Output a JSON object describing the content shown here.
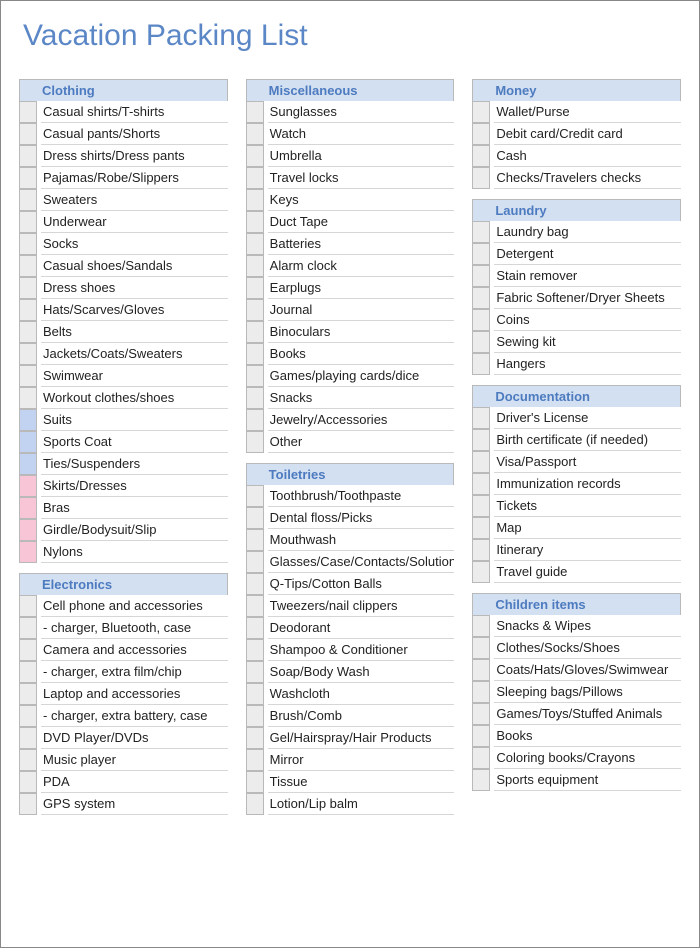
{
  "title": "Vacation Packing List",
  "colors": {
    "title_color": "#5b87c7",
    "header_bg": "#d3e0f1",
    "header_text": "#4d7bc0",
    "box_gray": "#ececec",
    "box_blue": "#c2d3f2",
    "box_pink": "#f7c5d6",
    "border": "#b9b9b9",
    "row_border": "#d6d6d6"
  },
  "columns": [
    [
      {
        "name": "Clothing",
        "items": [
          {
            "label": "Casual shirts/T-shirts",
            "box": "gray"
          },
          {
            "label": "Casual pants/Shorts",
            "box": "gray"
          },
          {
            "label": "Dress shirts/Dress pants",
            "box": "gray"
          },
          {
            "label": "Pajamas/Robe/Slippers",
            "box": "gray"
          },
          {
            "label": "Sweaters",
            "box": "gray"
          },
          {
            "label": "Underwear",
            "box": "gray"
          },
          {
            "label": "Socks",
            "box": "gray"
          },
          {
            "label": "Casual shoes/Sandals",
            "box": "gray"
          },
          {
            "label": "Dress shoes",
            "box": "gray"
          },
          {
            "label": "Hats/Scarves/Gloves",
            "box": "gray"
          },
          {
            "label": "Belts",
            "box": "gray"
          },
          {
            "label": "Jackets/Coats/Sweaters",
            "box": "gray"
          },
          {
            "label": "Swimwear",
            "box": "gray"
          },
          {
            "label": "Workout clothes/shoes",
            "box": "gray"
          },
          {
            "label": "Suits",
            "box": "blue"
          },
          {
            "label": "Sports Coat",
            "box": "blue"
          },
          {
            "label": "Ties/Suspenders",
            "box": "blue"
          },
          {
            "label": "Skirts/Dresses",
            "box": "pink"
          },
          {
            "label": "Bras",
            "box": "pink"
          },
          {
            "label": "Girdle/Bodysuit/Slip",
            "box": "pink"
          },
          {
            "label": "Nylons",
            "box": "pink"
          }
        ]
      },
      {
        "name": "Electronics",
        "items": [
          {
            "label": "Cell phone and accessories",
            "box": "gray"
          },
          {
            "label": "  - charger, Bluetooth, case",
            "box": "gray"
          },
          {
            "label": "Camera and accessories",
            "box": "gray"
          },
          {
            "label": "  - charger, extra film/chip",
            "box": "gray"
          },
          {
            "label": "Laptop and accessories",
            "box": "gray"
          },
          {
            "label": "- charger, extra battery, case",
            "box": "gray"
          },
          {
            "label": "DVD Player/DVDs",
            "box": "gray"
          },
          {
            "label": "Music player",
            "box": "gray"
          },
          {
            "label": "PDA",
            "box": "gray"
          },
          {
            "label": "GPS system",
            "box": "gray"
          }
        ]
      }
    ],
    [
      {
        "name": "Miscellaneous",
        "items": [
          {
            "label": "Sunglasses",
            "box": "gray"
          },
          {
            "label": "Watch",
            "box": "gray"
          },
          {
            "label": "Umbrella",
            "box": "gray"
          },
          {
            "label": "Travel locks",
            "box": "gray"
          },
          {
            "label": "Keys",
            "box": "gray"
          },
          {
            "label": "Duct Tape",
            "box": "gray"
          },
          {
            "label": "Batteries",
            "box": "gray"
          },
          {
            "label": "Alarm clock",
            "box": "gray"
          },
          {
            "label": "Earplugs",
            "box": "gray"
          },
          {
            "label": "Journal",
            "box": "gray"
          },
          {
            "label": "Binoculars",
            "box": "gray"
          },
          {
            "label": "Books",
            "box": "gray"
          },
          {
            "label": "Games/playing cards/dice",
            "box": "gray"
          },
          {
            "label": "Snacks",
            "box": "gray"
          },
          {
            "label": "Jewelry/Accessories",
            "box": "gray"
          },
          {
            "label": "Other",
            "box": "gray"
          }
        ]
      },
      {
        "name": "Toiletries",
        "items": [
          {
            "label": "Toothbrush/Toothpaste",
            "box": "gray"
          },
          {
            "label": "Dental floss/Picks",
            "box": "gray"
          },
          {
            "label": "Mouthwash",
            "box": "gray"
          },
          {
            "label": "Glasses/Case/Contacts/Solution",
            "box": "gray"
          },
          {
            "label": "Q-Tips/Cotton Balls",
            "box": "gray"
          },
          {
            "label": "Tweezers/nail clippers",
            "box": "gray"
          },
          {
            "label": "Deodorant",
            "box": "gray"
          },
          {
            "label": "Shampoo & Conditioner",
            "box": "gray"
          },
          {
            "label": "Soap/Body Wash",
            "box": "gray"
          },
          {
            "label": "Washcloth",
            "box": "gray"
          },
          {
            "label": "Brush/Comb",
            "box": "gray"
          },
          {
            "label": "Gel/Hairspray/Hair Products",
            "box": "gray"
          },
          {
            "label": "Mirror",
            "box": "gray"
          },
          {
            "label": "Tissue",
            "box": "gray"
          },
          {
            "label": "Lotion/Lip balm",
            "box": "gray"
          }
        ]
      }
    ],
    [
      {
        "name": "Money",
        "items": [
          {
            "label": "Wallet/Purse",
            "box": "gray"
          },
          {
            "label": "Debit card/Credit card",
            "box": "gray"
          },
          {
            "label": "Cash",
            "box": "gray"
          },
          {
            "label": "Checks/Travelers checks",
            "box": "gray"
          }
        ]
      },
      {
        "name": "Laundry",
        "items": [
          {
            "label": "Laundry bag",
            "box": "gray"
          },
          {
            "label": "Detergent",
            "box": "gray"
          },
          {
            "label": "Stain remover",
            "box": "gray"
          },
          {
            "label": "Fabric Softener/Dryer Sheets",
            "box": "gray"
          },
          {
            "label": "Coins",
            "box": "gray"
          },
          {
            "label": "Sewing kit",
            "box": "gray"
          },
          {
            "label": "Hangers",
            "box": "gray"
          }
        ]
      },
      {
        "name": "Documentation",
        "items": [
          {
            "label": "Driver's License",
            "box": "gray"
          },
          {
            "label": "Birth certificate (if needed)",
            "box": "gray"
          },
          {
            "label": "Visa/Passport",
            "box": "gray"
          },
          {
            "label": "Immunization records",
            "box": "gray"
          },
          {
            "label": "Tickets",
            "box": "gray"
          },
          {
            "label": "Map",
            "box": "gray"
          },
          {
            "label": "Itinerary",
            "box": "gray"
          },
          {
            "label": "Travel guide",
            "box": "gray"
          }
        ]
      },
      {
        "name": "Children items",
        "items": [
          {
            "label": "Snacks & Wipes",
            "box": "gray"
          },
          {
            "label": "Clothes/Socks/Shoes",
            "box": "gray"
          },
          {
            "label": "Coats/Hats/Gloves/Swimwear",
            "box": "gray"
          },
          {
            "label": "Sleeping bags/Pillows",
            "box": "gray"
          },
          {
            "label": "Games/Toys/Stuffed Animals",
            "box": "gray"
          },
          {
            "label": "Books",
            "box": "gray"
          },
          {
            "label": "Coloring books/Crayons",
            "box": "gray"
          },
          {
            "label": "Sports equipment",
            "box": "gray"
          }
        ]
      }
    ]
  ]
}
